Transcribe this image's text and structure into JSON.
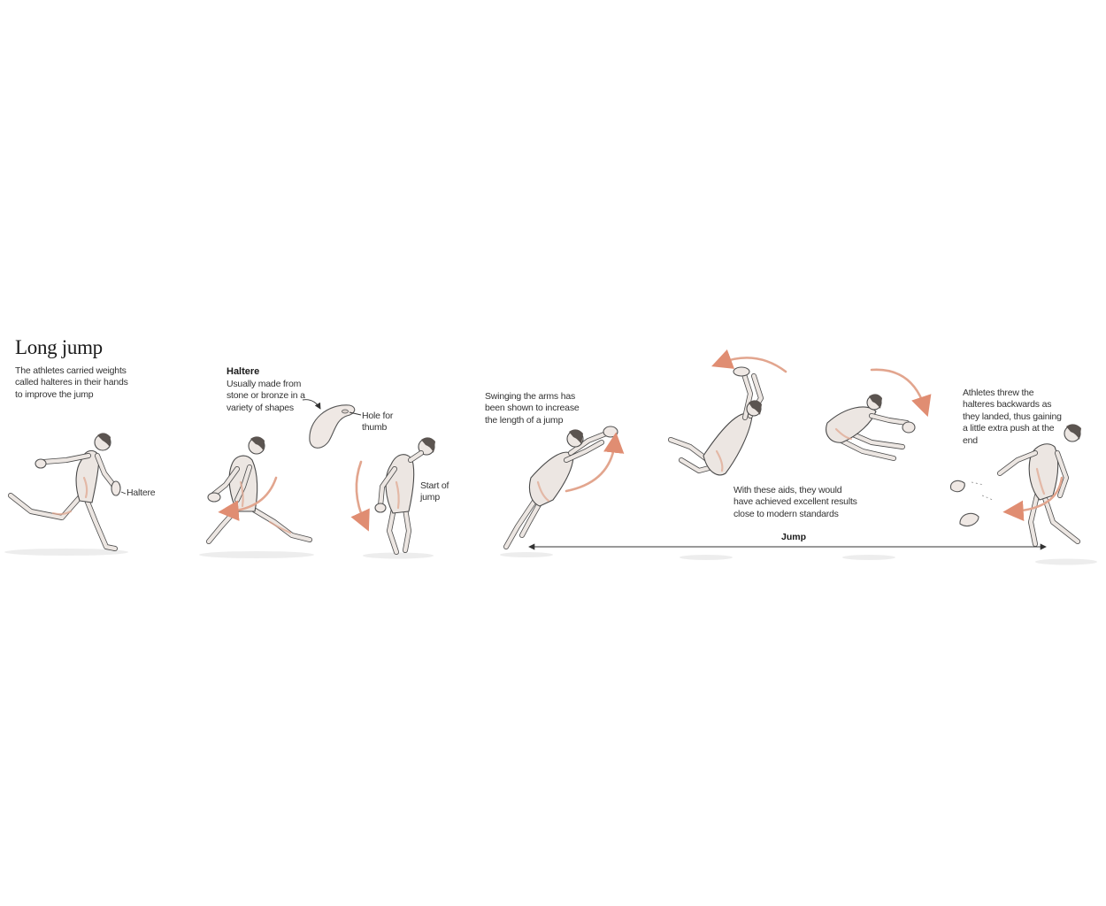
{
  "title": "Long jump",
  "intro": [
    "The athletes carried weights",
    "called halteres in their hands",
    "to improve the jump"
  ],
  "haltere_label": "Haltere",
  "haltere_box": {
    "heading": "Haltere",
    "desc": [
      "Usually made from",
      "stone or bronze in a",
      "variety of shapes"
    ],
    "hole_label": [
      "Hole for",
      "thumb"
    ]
  },
  "start_label": [
    "Start of",
    "jump"
  ],
  "swing_text": [
    "Swinging the arms has",
    "been shown to increase",
    "the length of a jump"
  ],
  "aids_text": [
    "With these aids, they would",
    "have achieved excellent results",
    "close to modern standards"
  ],
  "landing_text": [
    "Athletes threw the",
    "halteres backwards as",
    "they landed, thus gaining",
    "a little extra push at the",
    "end"
  ],
  "jump_label": "Jump",
  "colors": {
    "accent_arrow": "#e08d72",
    "text": "#333333"
  }
}
